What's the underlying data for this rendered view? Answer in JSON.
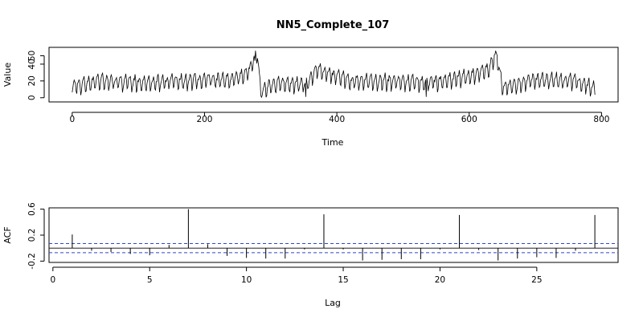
{
  "title": "NN5_Complete_107",
  "chart_data": [
    {
      "type": "line",
      "title": "NN5_Complete_107",
      "xlabel": "Time",
      "ylabel": "Value",
      "xlim": [
        -35,
        825
      ],
      "ylim": [
        -5,
        60
      ],
      "xticks": [
        0,
        200,
        400,
        600,
        800
      ],
      "yticks": [
        0,
        20,
        40,
        50
      ],
      "summary_points": [
        {
          "x": 0,
          "y": 12
        },
        {
          "x": 20,
          "y": 14
        },
        {
          "x": 40,
          "y": 18
        },
        {
          "x": 80,
          "y": 17
        },
        {
          "x": 120,
          "y": 16
        },
        {
          "x": 160,
          "y": 18
        },
        {
          "x": 200,
          "y": 20
        },
        {
          "x": 240,
          "y": 19
        },
        {
          "x": 265,
          "y": 28
        },
        {
          "x": 275,
          "y": 44
        },
        {
          "x": 280,
          "y": 47
        },
        {
          "x": 285,
          "y": 4
        },
        {
          "x": 300,
          "y": 14
        },
        {
          "x": 355,
          "y": 15
        },
        {
          "x": 370,
          "y": 32
        },
        {
          "x": 420,
          "y": 18
        },
        {
          "x": 480,
          "y": 18
        },
        {
          "x": 540,
          "y": 16
        },
        {
          "x": 600,
          "y": 24
        },
        {
          "x": 630,
          "y": 32
        },
        {
          "x": 641,
          "y": 53
        },
        {
          "x": 650,
          "y": 10
        },
        {
          "x": 700,
          "y": 20
        },
        {
          "x": 760,
          "y": 18
        },
        {
          "x": 790,
          "y": 10
        }
      ],
      "n_points": 791,
      "grid": false
    },
    {
      "type": "bar",
      "subtype": "acf",
      "xlabel": "Lag",
      "ylabel": "ACF",
      "xlim": [
        -0.2,
        29.2
      ],
      "ylim": [
        -0.22,
        0.62
      ],
      "xticks": [
        0,
        5,
        10,
        15,
        20,
        25
      ],
      "yticks": [
        -0.2,
        0.2,
        0.6
      ],
      "lags": [
        1,
        2,
        3,
        4,
        5,
        6,
        7,
        8,
        9,
        10,
        11,
        12,
        13,
        14,
        15,
        16,
        17,
        18,
        19,
        20,
        21,
        22,
        23,
        24,
        25,
        26,
        27,
        28
      ],
      "values": [
        0.21,
        -0.04,
        -0.06,
        -0.09,
        -0.11,
        0.05,
        0.6,
        0.06,
        -0.12,
        -0.15,
        -0.16,
        -0.16,
        -0.02,
        0.52,
        -0.02,
        -0.19,
        -0.18,
        -0.17,
        -0.17,
        -0.02,
        0.51,
        -0.03,
        -0.19,
        -0.16,
        -0.14,
        -0.15,
        -0.04,
        0.51
      ],
      "ci": 0.07,
      "grid": false
    }
  ]
}
